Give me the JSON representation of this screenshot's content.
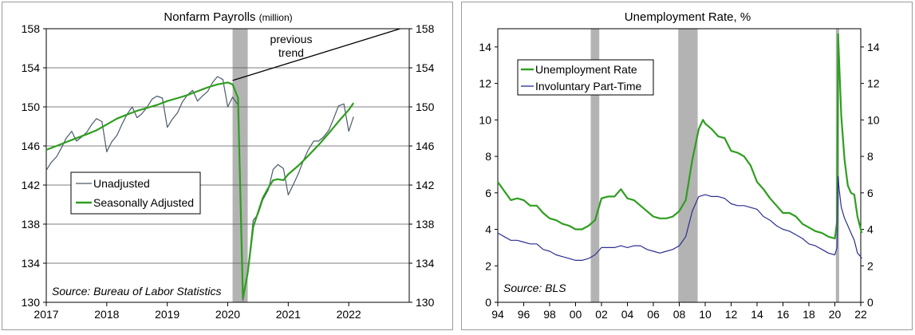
{
  "chart_data": [
    {
      "type": "line",
      "title": "Nonfarm Payrolls",
      "title_unit": "(million)",
      "xlabel": "",
      "ylabel": "",
      "x_ticks": [
        "2017",
        "2018",
        "2019",
        "2020",
        "2021",
        "2022"
      ],
      "x_range": [
        2017.0,
        2023.0
      ],
      "y_ticks": [
        "130",
        "134",
        "138",
        "142",
        "146",
        "150",
        "154",
        "158"
      ],
      "ylim": [
        130,
        158
      ],
      "grid": "horizontal",
      "legend": "bottom-left",
      "recession_shading": [
        [
          2020.08,
          2020.33
        ]
      ],
      "series": [
        {
          "name": "Unadjusted",
          "color": "#4a5a6a",
          "x": [
            2017.0,
            2017.08,
            2017.17,
            2017.25,
            2017.33,
            2017.42,
            2017.5,
            2017.58,
            2017.67,
            2017.75,
            2017.83,
            2017.92,
            2018.0,
            2018.08,
            2018.17,
            2018.25,
            2018.33,
            2018.42,
            2018.5,
            2018.58,
            2018.67,
            2018.75,
            2018.83,
            2018.92,
            2019.0,
            2019.08,
            2019.17,
            2019.25,
            2019.33,
            2019.42,
            2019.5,
            2019.58,
            2019.67,
            2019.75,
            2019.83,
            2019.92,
            2020.0,
            2020.08,
            2020.17,
            2020.25,
            2020.33,
            2020.42,
            2020.5,
            2020.58,
            2020.67,
            2020.75,
            2020.83,
            2020.92,
            2021.0,
            2021.08,
            2021.17,
            2021.25,
            2021.33,
            2021.42,
            2021.5,
            2021.58,
            2021.67,
            2021.75,
            2021.83,
            2021.92,
            2022.0,
            2022.08
          ],
          "values": [
            143.5,
            144.3,
            144.9,
            145.8,
            146.8,
            147.5,
            146.5,
            146.9,
            147.4,
            148.2,
            148.8,
            148.5,
            145.4,
            146.4,
            147.1,
            148.2,
            149.2,
            150.0,
            148.9,
            149.3,
            150.0,
            150.8,
            151.1,
            150.9,
            147.9,
            148.7,
            149.4,
            150.5,
            151.2,
            151.7,
            150.6,
            151.1,
            151.6,
            152.5,
            153.1,
            152.8,
            150.0,
            151.0,
            150.2,
            130.2,
            133.0,
            138.4,
            139.0,
            140.5,
            141.5,
            143.6,
            144.1,
            143.7,
            141.0,
            142.0,
            143.2,
            144.5,
            145.6,
            146.5,
            146.5,
            146.9,
            147.6,
            148.8,
            150.1,
            150.3,
            147.5,
            149.0
          ]
        },
        {
          "name": "Seasonally Adjusted",
          "color": "#2e9e1f",
          "x": [
            2017.0,
            2017.17,
            2017.33,
            2017.5,
            2017.67,
            2017.83,
            2018.0,
            2018.17,
            2018.33,
            2018.5,
            2018.67,
            2018.83,
            2019.0,
            2019.17,
            2019.33,
            2019.5,
            2019.67,
            2019.83,
            2020.0,
            2020.08,
            2020.17,
            2020.25,
            2020.33,
            2020.42,
            2020.5,
            2020.58,
            2020.67,
            2020.75,
            2020.83,
            2020.92,
            2021.0,
            2021.17,
            2021.33,
            2021.5,
            2021.67,
            2021.83,
            2022.0,
            2022.08
          ],
          "values": [
            145.6,
            146.0,
            146.4,
            146.8,
            147.2,
            147.6,
            148.2,
            148.8,
            149.2,
            149.6,
            149.9,
            150.2,
            150.6,
            150.9,
            151.2,
            151.6,
            152.0,
            152.3,
            152.5,
            152.3,
            150.9,
            130.4,
            133.0,
            137.7,
            139.2,
            140.7,
            141.7,
            142.5,
            142.6,
            142.5,
            143.1,
            144.0,
            145.0,
            146.1,
            147.3,
            148.5,
            149.7,
            150.4
          ]
        },
        {
          "name": "",
          "color": "#000000",
          "x": [
            2020.08,
            2022.85
          ],
          "values": [
            152.7,
            158.0
          ]
        }
      ],
      "annotations": [
        "previous",
        "trend"
      ],
      "source": "Source: Bureau of Labor Statistics"
    },
    {
      "type": "line",
      "title": "Unemployment Rate, %",
      "xlabel": "",
      "ylabel": "",
      "x_ticks": [
        "94",
        "96",
        "98",
        "00",
        "02",
        "04",
        "06",
        "08",
        "10",
        "12",
        "14",
        "16",
        "18",
        "20",
        "22"
      ],
      "x_range": [
        1994.0,
        2022.0
      ],
      "y_ticks": [
        "0",
        "2",
        "4",
        "6",
        "8",
        "10",
        "12",
        "14"
      ],
      "ylim": [
        0,
        15
      ],
      "grid": "none",
      "legend": "top-left",
      "recession_shading": [
        [
          2001.17,
          2001.83
        ],
        [
          2007.92,
          2009.42
        ],
        [
          2020.08,
          2020.33
        ]
      ],
      "series": [
        {
          "name": "Unemployment Rate",
          "color": "#2e9e1f",
          "x": [
            1994.0,
            1994.5,
            1995.0,
            1995.5,
            1996.0,
            1996.5,
            1997.0,
            1997.5,
            1998.0,
            1998.5,
            1999.0,
            1999.5,
            2000.0,
            2000.5,
            2001.0,
            2001.5,
            2002.0,
            2002.5,
            2003.0,
            2003.5,
            2004.0,
            2004.5,
            2005.0,
            2005.5,
            2006.0,
            2006.5,
            2007.0,
            2007.5,
            2008.0,
            2008.5,
            2009.0,
            2009.5,
            2009.83,
            2010.0,
            2010.5,
            2011.0,
            2011.5,
            2012.0,
            2012.5,
            2013.0,
            2013.5,
            2014.0,
            2014.5,
            2015.0,
            2015.5,
            2016.0,
            2016.5,
            2017.0,
            2017.5,
            2018.0,
            2018.5,
            2019.0,
            2019.5,
            2020.0,
            2020.17,
            2020.25,
            2020.33,
            2020.5,
            2020.75,
            2021.0,
            2021.25,
            2021.5,
            2021.75,
            2022.0,
            2022.08
          ],
          "values": [
            6.6,
            6.1,
            5.6,
            5.7,
            5.6,
            5.3,
            5.3,
            4.9,
            4.6,
            4.5,
            4.3,
            4.2,
            4.0,
            4.0,
            4.2,
            4.5,
            5.7,
            5.8,
            5.8,
            6.2,
            5.7,
            5.6,
            5.3,
            5.0,
            4.7,
            4.6,
            4.6,
            4.7,
            5.0,
            5.6,
            7.8,
            9.5,
            10.0,
            9.8,
            9.5,
            9.1,
            9.0,
            8.3,
            8.2,
            8.0,
            7.5,
            6.6,
            6.2,
            5.7,
            5.3,
            4.9,
            4.9,
            4.7,
            4.3,
            4.1,
            3.9,
            3.8,
            3.6,
            3.5,
            4.4,
            14.7,
            13.2,
            10.2,
            7.8,
            6.4,
            6.0,
            5.9,
            4.7,
            4.0,
            3.8
          ]
        },
        {
          "name": "Involuntary Part-Time",
          "color": "#2b2f8f",
          "x": [
            1994.0,
            1994.5,
            1995.0,
            1995.5,
            1996.0,
            1996.5,
            1997.0,
            1997.5,
            1998.0,
            1998.5,
            1999.0,
            1999.5,
            2000.0,
            2000.5,
            2001.0,
            2001.5,
            2002.0,
            2002.5,
            2003.0,
            2003.5,
            2004.0,
            2004.5,
            2005.0,
            2005.5,
            2006.0,
            2006.5,
            2007.0,
            2007.5,
            2008.0,
            2008.5,
            2009.0,
            2009.5,
            2010.0,
            2010.5,
            2011.0,
            2011.5,
            2012.0,
            2012.5,
            2013.0,
            2013.5,
            2014.0,
            2014.5,
            2015.0,
            2015.5,
            2016.0,
            2016.5,
            2017.0,
            2017.5,
            2018.0,
            2018.5,
            2019.0,
            2019.5,
            2020.0,
            2020.17,
            2020.25,
            2020.33,
            2020.5,
            2020.75,
            2021.0,
            2021.25,
            2021.5,
            2021.75,
            2022.0,
            2022.08
          ],
          "values": [
            3.8,
            3.6,
            3.4,
            3.4,
            3.3,
            3.2,
            3.2,
            2.9,
            2.8,
            2.6,
            2.5,
            2.4,
            2.3,
            2.3,
            2.4,
            2.6,
            3.0,
            3.0,
            3.0,
            3.1,
            3.0,
            3.1,
            3.1,
            2.9,
            2.8,
            2.7,
            2.8,
            2.9,
            3.1,
            3.6,
            5.0,
            5.8,
            5.9,
            5.8,
            5.8,
            5.7,
            5.4,
            5.3,
            5.3,
            5.2,
            5.1,
            4.7,
            4.5,
            4.2,
            4.0,
            3.9,
            3.7,
            3.5,
            3.2,
            3.1,
            2.9,
            2.7,
            2.6,
            3.0,
            6.9,
            6.2,
            5.2,
            4.6,
            4.2,
            3.8,
            3.4,
            2.7,
            2.5,
            2.4
          ]
        }
      ],
      "source": "Source: BLS"
    }
  ]
}
